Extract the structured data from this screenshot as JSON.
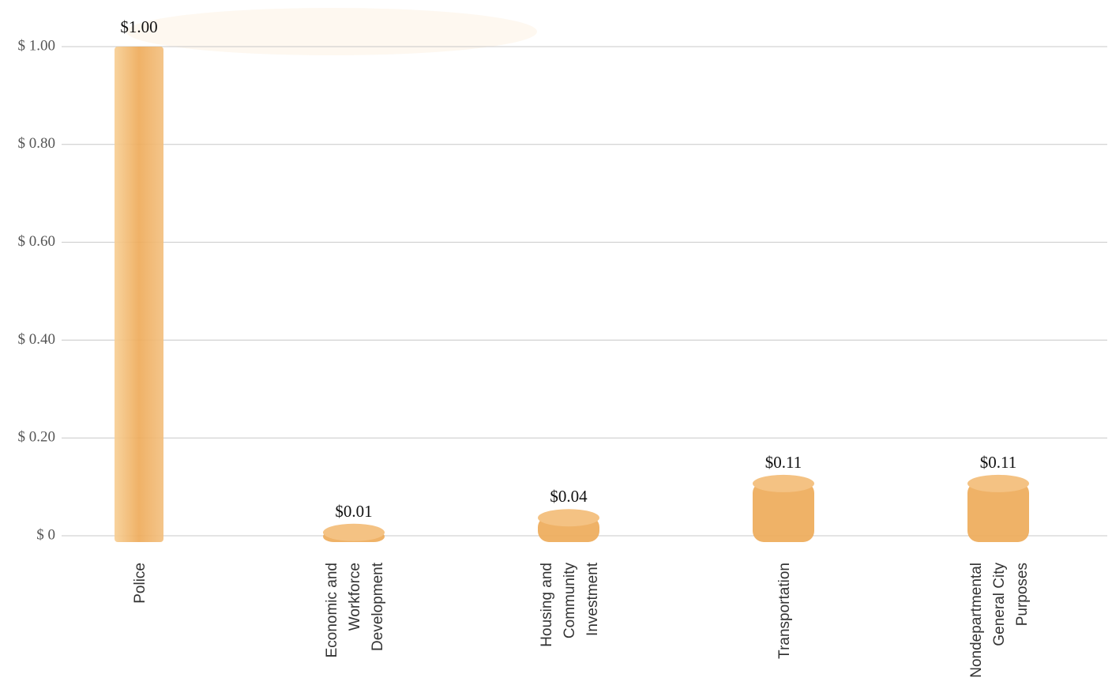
{
  "chart_data": {
    "type": "bar",
    "categories": [
      [
        "Police"
      ],
      [
        "Economic and",
        "Workforce",
        "Development"
      ],
      [
        "Housing and",
        "Community",
        "Investment"
      ],
      [
        "Transportation"
      ],
      [
        "Nondepartmental",
        "General City",
        "Purposes"
      ]
    ],
    "values": [
      1.0,
      0.01,
      0.04,
      0.11,
      0.11
    ],
    "value_labels": [
      "$1.00",
      "$0.01",
      "$0.04",
      "$0.11",
      "$0.11"
    ],
    "color": "#eeab5a",
    "ylim": [
      0,
      1
    ],
    "yticks": [
      {
        "value": 0,
        "label": "$ 0"
      },
      {
        "value": 0.2,
        "label": "$ 0.20"
      },
      {
        "value": 0.4,
        "label": "$ 0.40"
      },
      {
        "value": 0.6,
        "label": "$ 0.60"
      },
      {
        "value": 0.8,
        "label": "$ 0.80"
      },
      {
        "value": 1,
        "label": "$ 1.00"
      }
    ],
    "grid": true
  }
}
